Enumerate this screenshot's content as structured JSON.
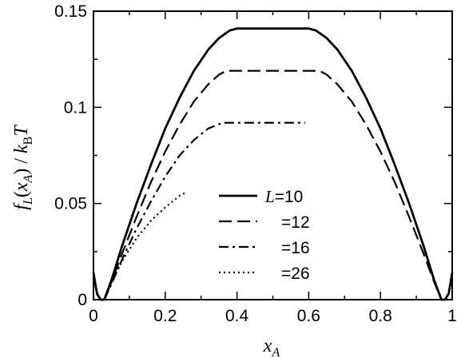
{
  "chart_data": {
    "type": "line",
    "title": "",
    "xlim": [
      0,
      1
    ],
    "ylim": [
      0,
      0.15
    ],
    "xticks": [
      "0",
      "0.2",
      "0.4",
      "0.6",
      "0.8",
      "1"
    ],
    "yticks": [
      "0",
      "0.05",
      "0.1",
      "0.15"
    ],
    "xlabel": {
      "var": "x",
      "sub": "A"
    },
    "ylabel": {
      "f": "f",
      "fsub": "L",
      "open": "(",
      "x": "x",
      "xsub": "A",
      "close": ")",
      "slash": " / ",
      "k": "k",
      "ksub": "B",
      "T": "T"
    },
    "legend": {
      "placement": "center",
      "var": "L",
      "entries": [
        "=10",
        "=12",
        "=16",
        "=26"
      ]
    },
    "grid": false,
    "series": [
      {
        "legend": "L=10",
        "style": "solid",
        "x": [
          0.0,
          0.01,
          0.02,
          0.03,
          0.05,
          0.08,
          0.12,
          0.16,
          0.2,
          0.24,
          0.28,
          0.32,
          0.35,
          0.38,
          0.4,
          0.45,
          0.5,
          0.55,
          0.6,
          0.62,
          0.65,
          0.68,
          0.72,
          0.76,
          0.8,
          0.84,
          0.88,
          0.92,
          0.95,
          0.97,
          0.98,
          0.99,
          1.0
        ],
        "y": [
          0.014,
          0.003,
          0.0,
          0.0,
          0.01,
          0.028,
          0.05,
          0.07,
          0.089,
          0.105,
          0.119,
          0.13,
          0.136,
          0.14,
          0.141,
          0.141,
          0.141,
          0.141,
          0.141,
          0.14,
          0.136,
          0.13,
          0.119,
          0.105,
          0.089,
          0.07,
          0.05,
          0.028,
          0.01,
          0.0,
          0.0,
          0.003,
          0.014
        ]
      },
      {
        "legend": "=12",
        "style": "dashed",
        "x": [
          0.0,
          0.01,
          0.02,
          0.03,
          0.05,
          0.08,
          0.12,
          0.16,
          0.2,
          0.24,
          0.28,
          0.32,
          0.35,
          0.37,
          0.4,
          0.5,
          0.6,
          0.63,
          0.65,
          0.68,
          0.72,
          0.76,
          0.8,
          0.84,
          0.88,
          0.92,
          0.95,
          0.97,
          0.98,
          0.99,
          1.0
        ],
        "y": [
          0.012,
          0.003,
          0.0,
          0.0,
          0.009,
          0.024,
          0.043,
          0.061,
          0.077,
          0.091,
          0.103,
          0.112,
          0.117,
          0.119,
          0.119,
          0.119,
          0.119,
          0.119,
          0.117,
          0.112,
          0.103,
          0.091,
          0.077,
          0.061,
          0.043,
          0.024,
          0.009,
          0.0,
          0.0,
          0.003,
          0.012
        ]
      },
      {
        "legend": "=16",
        "style": "dashdot",
        "x": [
          0.03,
          0.05,
          0.08,
          0.12,
          0.16,
          0.2,
          0.24,
          0.28,
          0.32,
          0.36,
          0.38,
          0.4,
          0.5,
          0.59
        ],
        "y": [
          0.0,
          0.008,
          0.021,
          0.037,
          0.051,
          0.064,
          0.075,
          0.083,
          0.089,
          0.092,
          0.092,
          0.092,
          0.092,
          0.092
        ]
      },
      {
        "legend": "=26",
        "style": "dotted",
        "x": [
          0.03,
          0.05,
          0.08,
          0.12,
          0.16,
          0.2,
          0.24,
          0.26
        ],
        "y": [
          0.0,
          0.009,
          0.02,
          0.032,
          0.041,
          0.048,
          0.054,
          0.056
        ]
      }
    ]
  }
}
